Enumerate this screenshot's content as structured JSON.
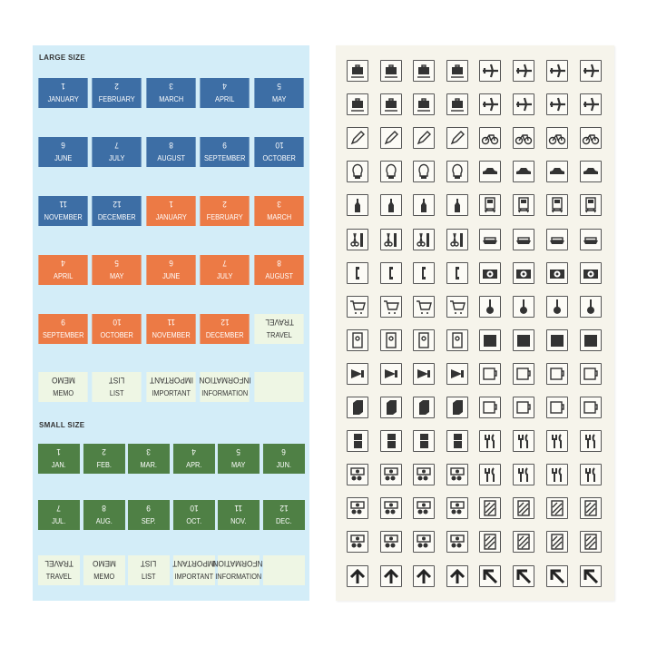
{
  "colors": {
    "blue": "#3d6ea5",
    "orange": "#ec7a45",
    "green": "#4f8045",
    "pale": "#eef6e4",
    "sheet_left": "#d3edf8",
    "sheet_right": "#f6f4eb"
  },
  "large_size": {
    "label": "LARGE SIZE",
    "strips": [
      {
        "cells": [
          {
            "top": "1",
            "bottom": "JANUARY",
            "color": "blue"
          },
          {
            "top": "2",
            "bottom": "FEBRUARY",
            "color": "blue"
          },
          {
            "top": "3",
            "bottom": "MARCH",
            "color": "blue"
          },
          {
            "top": "4",
            "bottom": "APRIL",
            "color": "blue"
          },
          {
            "top": "5",
            "bottom": "MAY",
            "color": "blue"
          }
        ]
      },
      {
        "cells": [
          {
            "top": "6",
            "bottom": "JUNE",
            "color": "blue"
          },
          {
            "top": "7",
            "bottom": "JULY",
            "color": "blue"
          },
          {
            "top": "8",
            "bottom": "AUGUST",
            "color": "blue"
          },
          {
            "top": "9",
            "bottom": "SEPTEMBER",
            "color": "blue"
          },
          {
            "top": "10",
            "bottom": "OCTOBER",
            "color": "blue"
          }
        ]
      },
      {
        "cells": [
          {
            "top": "11",
            "bottom": "NOVEMBER",
            "color": "blue"
          },
          {
            "top": "12",
            "bottom": "DECEMBER",
            "color": "blue"
          },
          {
            "top": "1",
            "bottom": "JANUARY",
            "color": "orange"
          },
          {
            "top": "2",
            "bottom": "FEBRUARY",
            "color": "orange"
          },
          {
            "top": "3",
            "bottom": "MARCH",
            "color": "orange"
          }
        ]
      },
      {
        "cells": [
          {
            "top": "4",
            "bottom": "APRIL",
            "color": "orange"
          },
          {
            "top": "5",
            "bottom": "MAY",
            "color": "orange"
          },
          {
            "top": "6",
            "bottom": "JUNE",
            "color": "orange"
          },
          {
            "top": "7",
            "bottom": "JULY",
            "color": "orange"
          },
          {
            "top": "8",
            "bottom": "AUGUST",
            "color": "orange"
          }
        ]
      },
      {
        "cells": [
          {
            "top": "9",
            "bottom": "SEPTEMBER",
            "color": "orange"
          },
          {
            "top": "10",
            "bottom": "OCTOBER",
            "color": "orange"
          },
          {
            "top": "11",
            "bottom": "NOVEMBER",
            "color": "orange"
          },
          {
            "top": "12",
            "bottom": "DECEMBER",
            "color": "orange"
          },
          {
            "top": "TRAVEL",
            "bottom": "TRAVEL",
            "color": "pale"
          }
        ]
      },
      {
        "cells": [
          {
            "top": "MEMO",
            "bottom": "MEMO",
            "color": "pale"
          },
          {
            "top": "LIST",
            "bottom": "LIST",
            "color": "pale"
          },
          {
            "top": "IMPORTANT",
            "bottom": "IMPORTANT",
            "color": "pale"
          },
          {
            "top": "INFORMATION",
            "bottom": "INFORMATION",
            "color": "pale"
          },
          {
            "top": "",
            "bottom": "",
            "color": "pale"
          }
        ]
      }
    ]
  },
  "small_size": {
    "label": "SMALL SIZE",
    "strips": [
      {
        "cells": [
          {
            "top": "1",
            "bottom": "JAN.",
            "color": "green"
          },
          {
            "top": "2",
            "bottom": "FEB.",
            "color": "green"
          },
          {
            "top": "3",
            "bottom": "MAR.",
            "color": "green"
          },
          {
            "top": "4",
            "bottom": "APR.",
            "color": "green"
          },
          {
            "top": "5",
            "bottom": "MAY",
            "color": "green"
          },
          {
            "top": "6",
            "bottom": "JUN.",
            "color": "green"
          }
        ]
      },
      {
        "cells": [
          {
            "top": "7",
            "bottom": "JUL.",
            "color": "green"
          },
          {
            "top": "8",
            "bottom": "AUG.",
            "color": "green"
          },
          {
            "top": "9",
            "bottom": "SEP.",
            "color": "green"
          },
          {
            "top": "10",
            "bottom": "OCT.",
            "color": "green"
          },
          {
            "top": "11",
            "bottom": "NOV.",
            "color": "green"
          },
          {
            "top": "12",
            "bottom": "DEC.",
            "color": "green"
          }
        ]
      },
      {
        "cells": [
          {
            "top": "TRAVEL",
            "bottom": "TRAVEL",
            "color": "pale"
          },
          {
            "top": "MEMO",
            "bottom": "MEMO",
            "color": "pale"
          },
          {
            "top": "LIST",
            "bottom": "LIST",
            "color": "pale"
          },
          {
            "top": "IMPORTANT",
            "bottom": "IMPORTANT",
            "color": "pale"
          },
          {
            "top": "INFORMATION",
            "bottom": "INFORMATION",
            "color": "pale"
          },
          {
            "top": "",
            "bottom": "",
            "color": "pale"
          }
        ]
      }
    ]
  },
  "icon_rows": [
    [
      "suitcase",
      "airplane"
    ],
    [
      "suitcase",
      "airplane"
    ],
    [
      "pencil",
      "bicycle"
    ],
    [
      "light-bulb",
      "car"
    ],
    [
      "bottle",
      "train"
    ],
    [
      "scissors-comb",
      "ship"
    ],
    [
      "telephone",
      "camera"
    ],
    [
      "shopping-cart",
      "guitar"
    ],
    [
      "envelope",
      "clapperboard"
    ],
    [
      "megaphone",
      "mug"
    ],
    [
      "book",
      "mug"
    ],
    [
      "refrigerator",
      "fork-knife"
    ],
    [
      "money",
      "fork-knife"
    ],
    [
      "money",
      "window"
    ],
    [
      "money",
      "window"
    ],
    [
      "arrow-up",
      "arrow-up-left"
    ]
  ]
}
